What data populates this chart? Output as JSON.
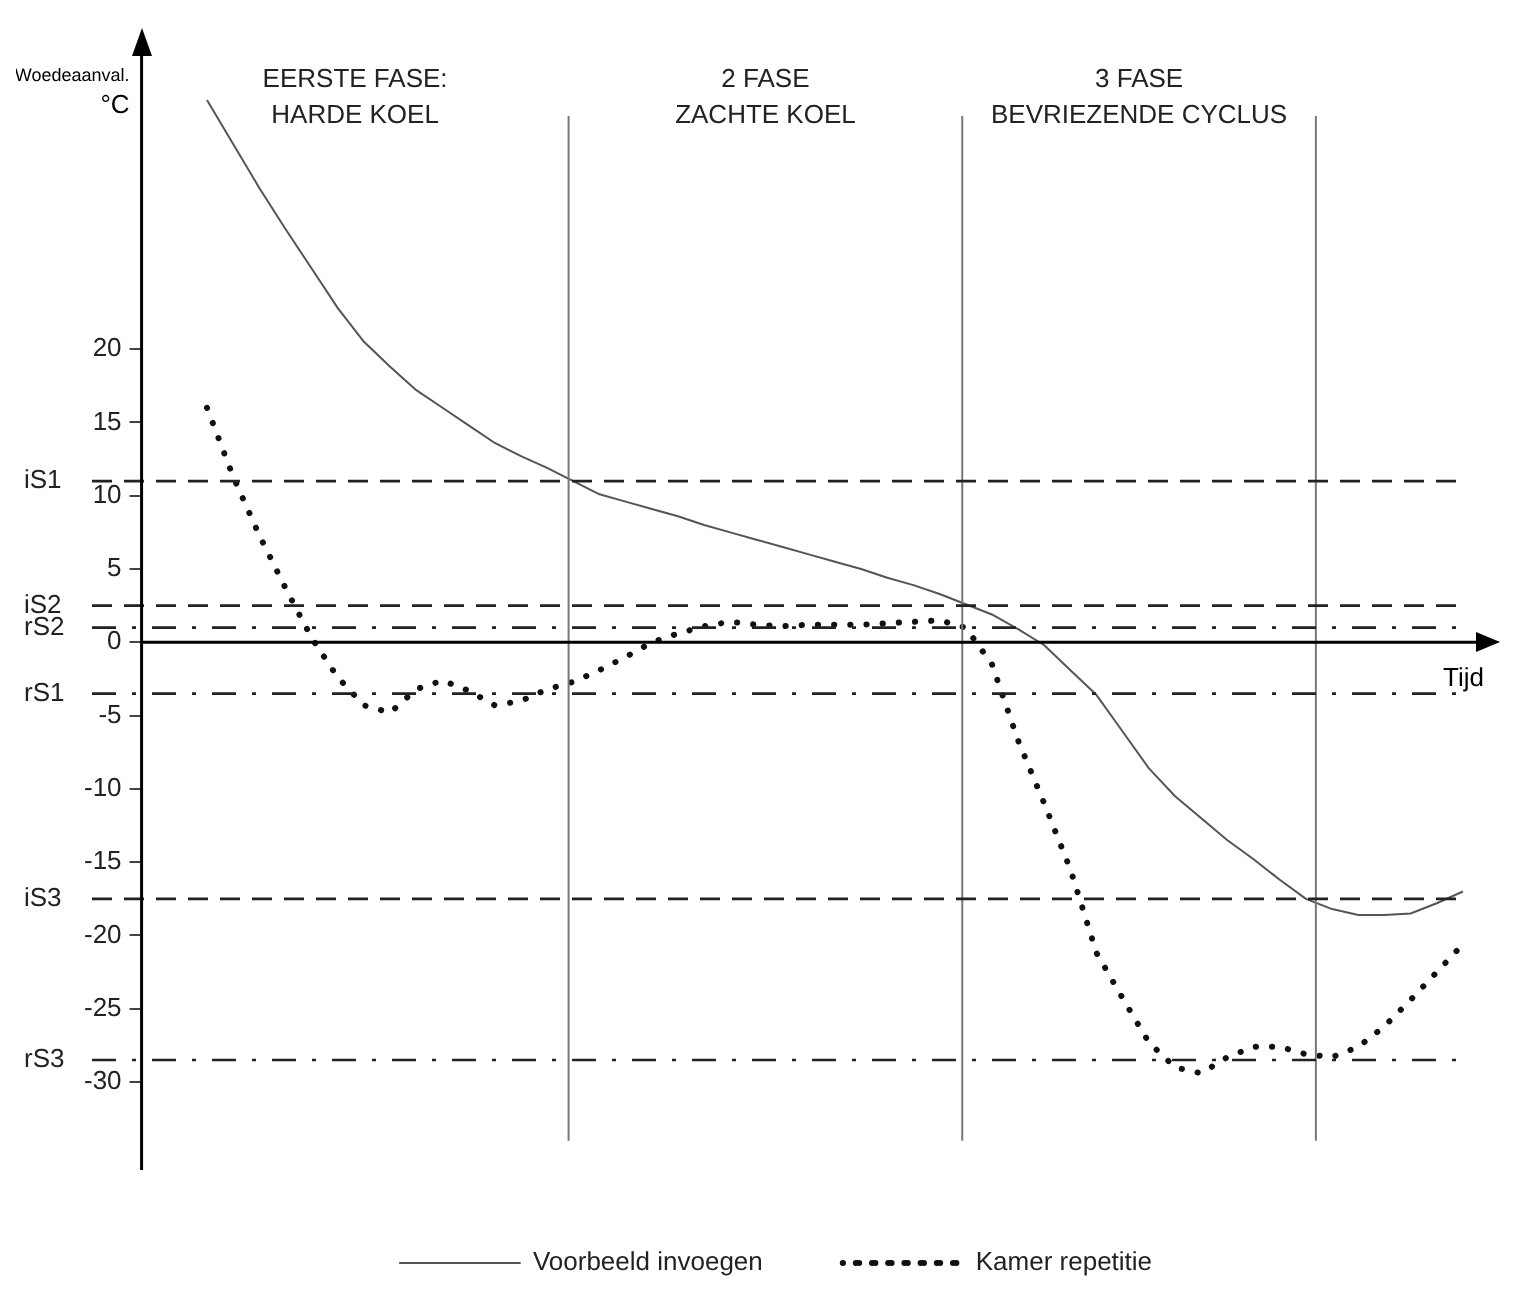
{
  "chart_data": {
    "type": "line",
    "ylabel": "Woedeaanval.\n°C",
    "xlabel": "Tijd",
    "categories": [
      null,
      null,
      null,
      null,
      null,
      null,
      null,
      null,
      null,
      null,
      null,
      null,
      null,
      null,
      null,
      null,
      null,
      null,
      null,
      null,
      null,
      null,
      null,
      null,
      null,
      null,
      null,
      null,
      null,
      null,
      null,
      null,
      null,
      null,
      null,
      null,
      null,
      null,
      null,
      null,
      null,
      null,
      null,
      null,
      null,
      null,
      null,
      null,
      null,
      null,
      null
    ],
    "ylim": [
      -36,
      40
    ],
    "yticks": [
      20,
      15,
      10,
      5,
      0,
      -5,
      -10,
      -15,
      -20,
      -25,
      -30
    ],
    "tick_labels": "y",
    "grid": false,
    "legend": "bottom",
    "marker": "none",
    "series": [
      {
        "name": "Voorbeeld invoegen",
        "color": "#555555",
        "line_style": "solid",
        "values": [
          null,
          null,
          37,
          34,
          31,
          28.2,
          25.5,
          22.8,
          20.5,
          18.8,
          17.2,
          16,
          14.8,
          13.6,
          12.7,
          11.9,
          11,
          10.1,
          9.6,
          9.1,
          8.6,
          8,
          7.5,
          7,
          6.5,
          6,
          5.5,
          5,
          4.4,
          3.9,
          3.3,
          2.6,
          1.9,
          0.9,
          -0.2,
          -1.9,
          -3.6,
          -6.1,
          -8.6,
          -10.5,
          -12,
          -13.5,
          -14.8,
          -16.2,
          -17.5,
          -18.2,
          -18.6,
          -18.6,
          -18.5,
          -17.8,
          -17
        ]
      },
      {
        "name": "Kamer repetitie",
        "color": "#111111",
        "line_style": "dotted",
        "values": [
          null,
          null,
          16,
          11.3,
          7.3,
          3.7,
          0.3,
          -2.4,
          -4.3,
          -4.8,
          -3.2,
          -2.6,
          -3.3,
          -4.3,
          -4,
          -3.2,
          -2.7,
          -1.9,
          -1,
          0,
          0.6,
          1.1,
          1.4,
          1.2,
          1.1,
          1.2,
          1.2,
          1.2,
          1.3,
          1.4,
          1.5,
          1,
          -1.5,
          -6.7,
          -11,
          -15.5,
          -21.2,
          -24.3,
          -27.3,
          -29,
          -29.4,
          -28.3,
          -27.6,
          -27.6,
          -28.1,
          -28.3,
          -27.6,
          -26.2,
          -24.4,
          -22.5,
          -20.6
        ]
      }
    ],
    "ref_lines": [
      {
        "axis": "y",
        "value": 11,
        "label": "iS1",
        "line_style": "dashed"
      },
      {
        "axis": "y",
        "value": 2.5,
        "label": "iS2",
        "line_style": "dashed"
      },
      {
        "axis": "y",
        "value": 1,
        "label": "rS2",
        "line_style": "dashdot"
      },
      {
        "axis": "y",
        "value": -3.5,
        "label": "rS1",
        "line_style": "dashdot"
      },
      {
        "axis": "y",
        "value": -17.5,
        "label": "iS3",
        "line_style": "dashed"
      },
      {
        "axis": "y",
        "value": -28.5,
        "label": "rS3",
        "line_style": "dashdot"
      }
    ],
    "annotations": [
      "EERSTE FASE:\nHARDE KOEL",
      "2 FASE\nZACHTE KOEL",
      "3 FASE\nBEVRIEZENDE CYCLUS"
    ]
  }
}
